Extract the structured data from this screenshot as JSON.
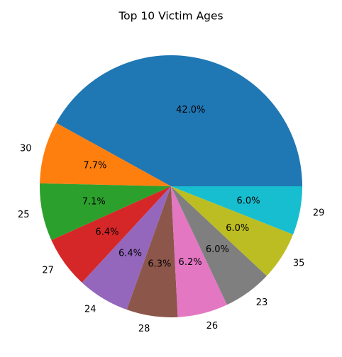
{
  "chart_data": {
    "type": "pie",
    "title": "Top 10 Victim Ages",
    "start_angle_deg": 0,
    "direction": "counterclockwise",
    "slices": [
      {
        "label": "",
        "value": 42.0,
        "pct_label": "42.0%",
        "color": "#1f77b4"
      },
      {
        "label": "30",
        "value": 7.7,
        "pct_label": "7.7%",
        "color": "#ff7f0e"
      },
      {
        "label": "25",
        "value": 7.1,
        "pct_label": "7.1%",
        "color": "#2ca02c"
      },
      {
        "label": "27",
        "value": 6.4,
        "pct_label": "6.4%",
        "color": "#d62728"
      },
      {
        "label": "24",
        "value": 6.4,
        "pct_label": "6.4%",
        "color": "#9467bd"
      },
      {
        "label": "28",
        "value": 6.3,
        "pct_label": "6.3%",
        "color": "#8c564b"
      },
      {
        "label": "26",
        "value": 6.2,
        "pct_label": "6.2%",
        "color": "#e377c2"
      },
      {
        "label": "23",
        "value": 6.0,
        "pct_label": "6.0%",
        "color": "#7f7f7f"
      },
      {
        "label": "35",
        "value": 6.0,
        "pct_label": "6.0%",
        "color": "#bcbd22"
      },
      {
        "label": "29",
        "value": 6.0,
        "pct_label": "6.0%",
        "color": "#17becf"
      }
    ]
  }
}
